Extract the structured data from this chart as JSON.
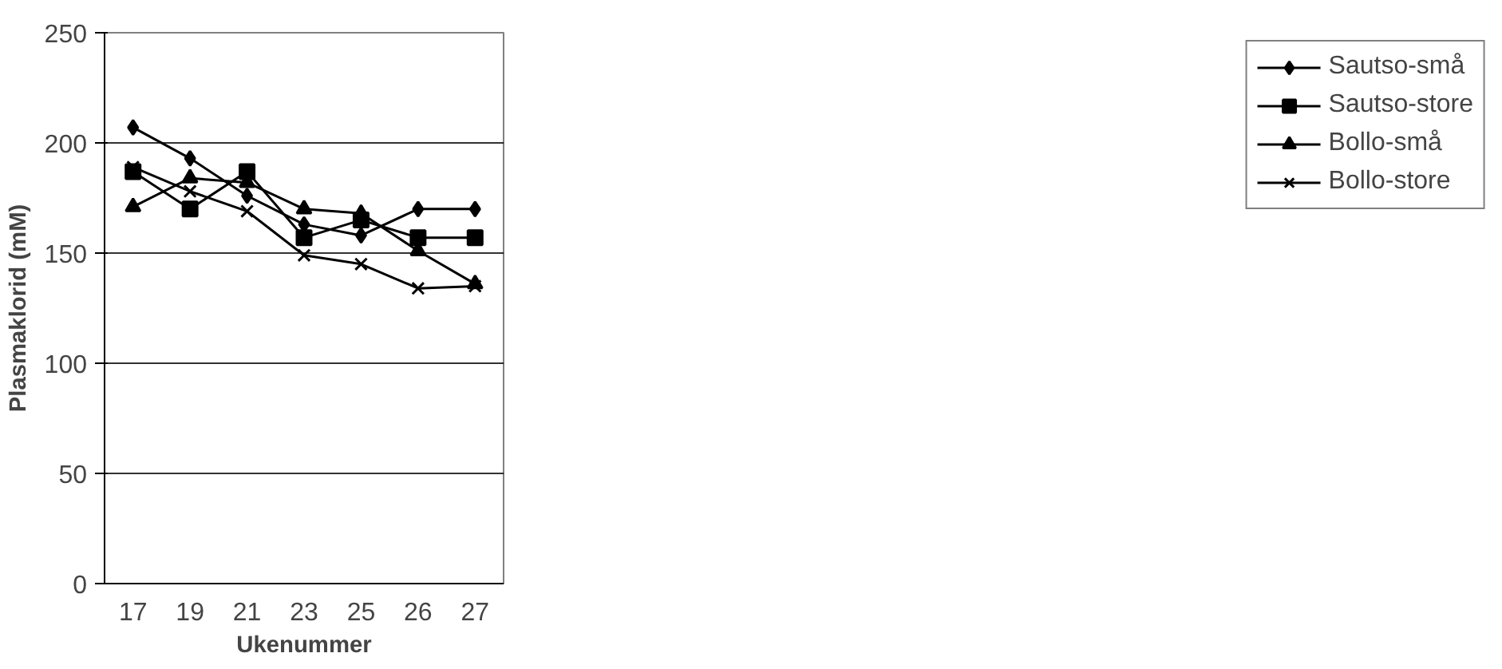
{
  "chart_data": {
    "type": "line",
    "xlabel": "Ukenummer",
    "ylabel": "Plasmaklorid (mM)",
    "categories": [
      "17",
      "19",
      "21",
      "23",
      "25",
      "26",
      "27"
    ],
    "series": [
      {
        "name": "Sautso-små",
        "color": "#000000",
        "marker": "diamond",
        "values": [
          207,
          193,
          176,
          163,
          158,
          170,
          170
        ]
      },
      {
        "name": "Sautso-store",
        "color": "#000000",
        "marker": "square",
        "values": [
          187,
          170,
          187,
          157,
          165,
          157,
          157
        ]
      },
      {
        "name": "Bollo-små",
        "color": "#000000",
        "marker": "triangle",
        "values": [
          171,
          184,
          182,
          170,
          168,
          151,
          136
        ]
      },
      {
        "name": "Bollo-store",
        "color": "#000000",
        "marker": "cross",
        "values": [
          189,
          178,
          169,
          149,
          145,
          134,
          135
        ]
      }
    ],
    "ylim": [
      0,
      250
    ],
    "yticks": [
      0,
      50,
      100,
      150,
      200,
      250
    ],
    "grid": "y",
    "legend": "right",
    "line_style": "solid"
  }
}
